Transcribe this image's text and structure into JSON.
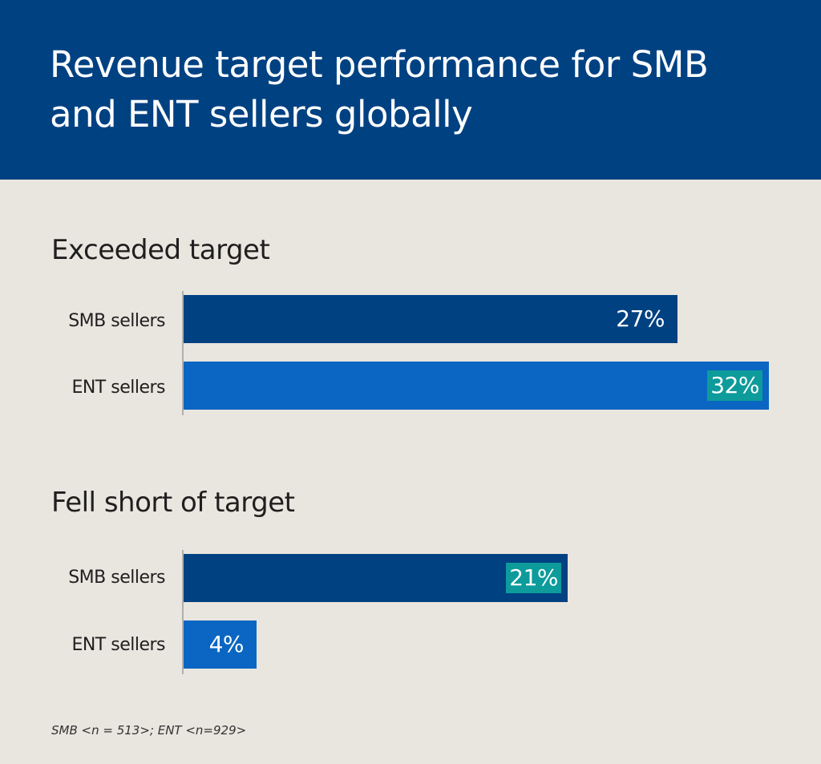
{
  "header": {
    "title": "Revenue target performance for SMB and ENT sellers globally"
  },
  "colors": {
    "header_bg": "#004182",
    "panel_bg": "#e9e5df",
    "smb_bar": "#004182",
    "ent_bar": "#0a66c2",
    "highlight": "#0d9b9b"
  },
  "chart_data": {
    "type": "bar",
    "orientation": "horizontal",
    "title": "Revenue target performance for SMB and ENT sellers globally",
    "categories": [
      "SMB sellers",
      "ENT sellers"
    ],
    "groups": [
      {
        "title": "Exceeded target",
        "values": [
          27,
          32
        ],
        "labels": [
          "27%",
          "32%"
        ],
        "highlight": [
          false,
          true
        ]
      },
      {
        "title": "Fell short of target",
        "values": [
          21,
          4
        ],
        "labels": [
          "21%",
          "4%"
        ],
        "highlight": [
          true,
          false
        ]
      }
    ],
    "xlim": [
      0,
      32
    ],
    "grid": false,
    "legend": "none"
  },
  "footnote": "SMB <n = 513>; ENT <n=929>"
}
